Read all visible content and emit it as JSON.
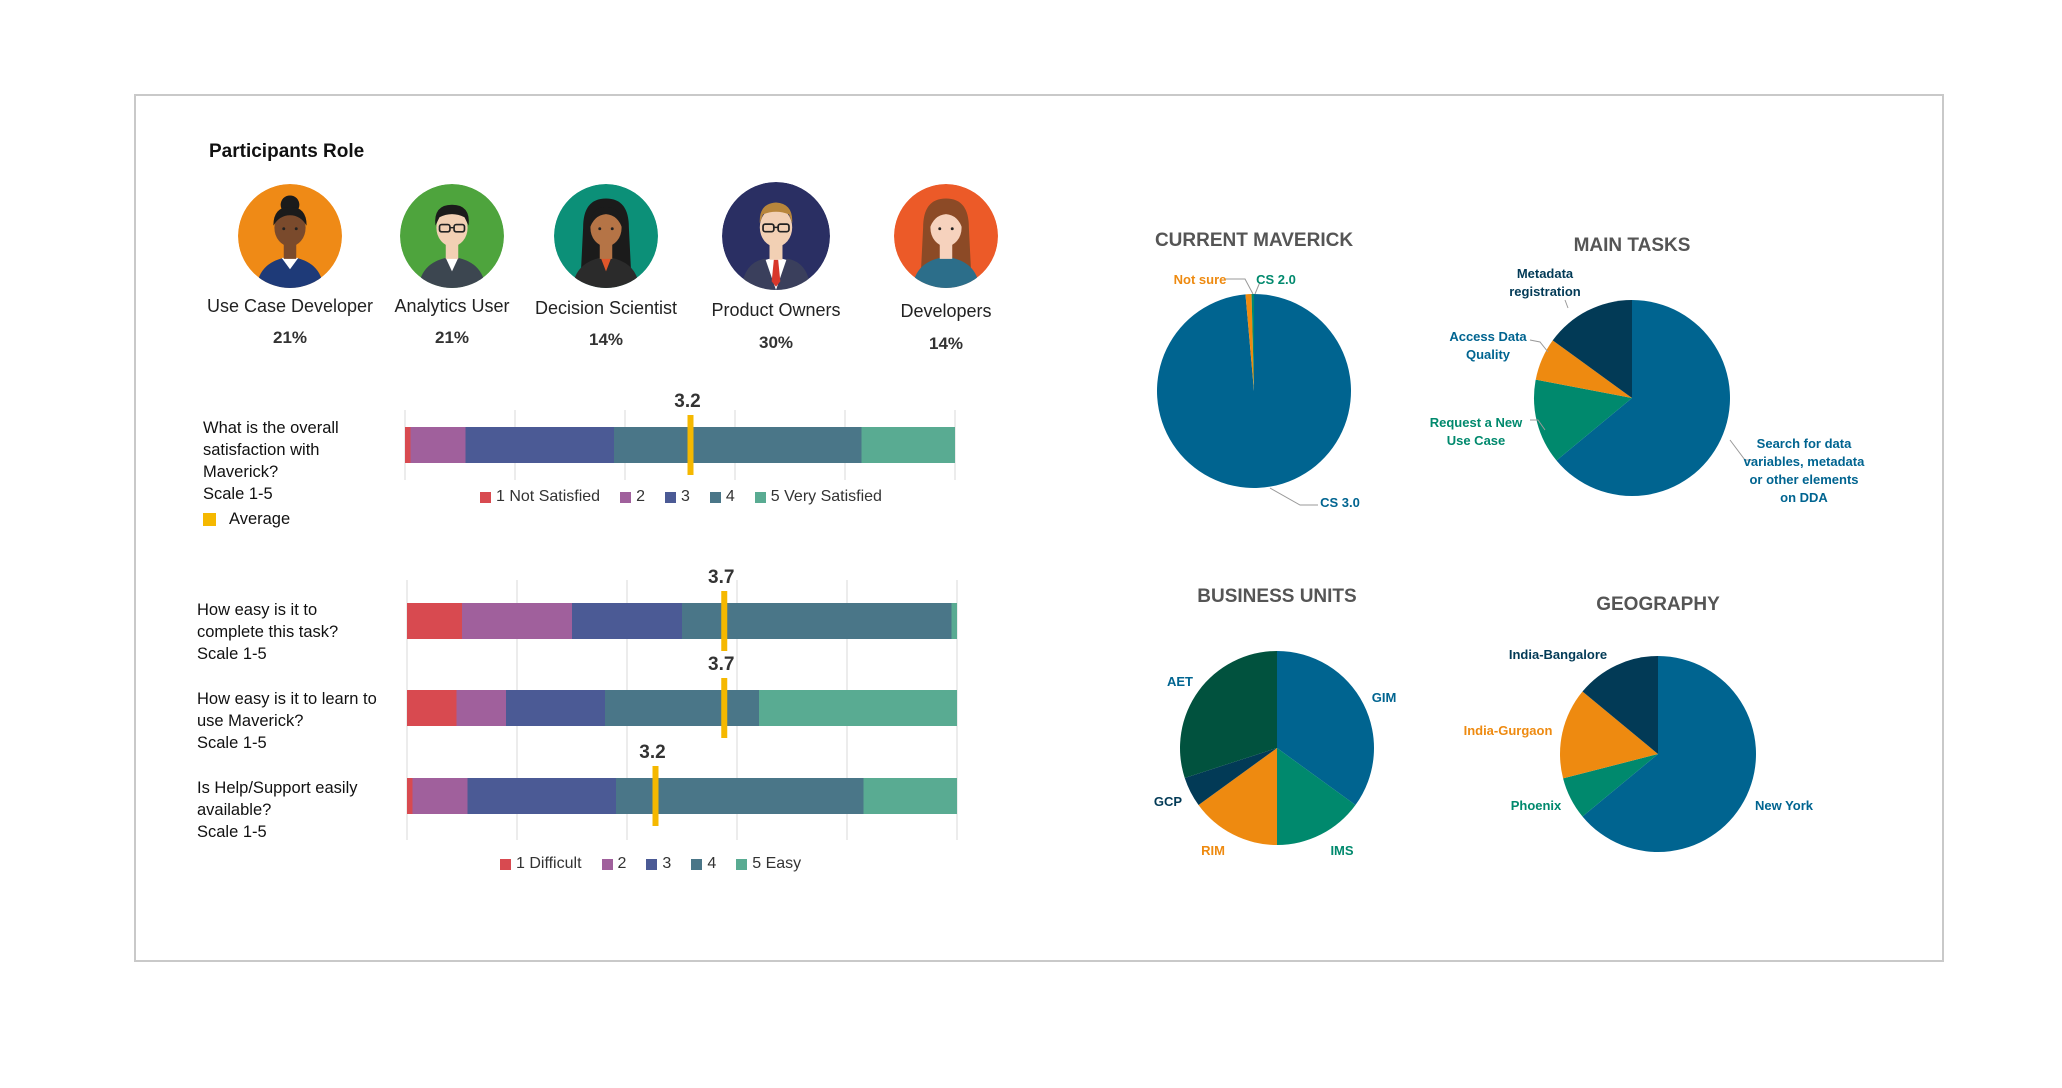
{
  "participants": {
    "title": "Participants Role",
    "roles": [
      {
        "label": "Use Case Developer",
        "pct": "21%",
        "bg": "#ef8a16",
        "skin": "#7a4a2c",
        "hair": "#1b1b1b",
        "shirt": "#1e3a78",
        "icon": "woman-curly-hair-icon"
      },
      {
        "label": "Analytics User",
        "pct": "21%",
        "bg": "#4ea43d",
        "skin": "#f2d0b4",
        "hair": "#1b1b1b",
        "shirt": "#3c4650",
        "icon": "man-glasses-icon"
      },
      {
        "label": "Decision Scientist",
        "pct": "14%",
        "bg": "#0c9078",
        "skin": "#b57446",
        "hair": "#1b1b1b",
        "shirt": "#2b2b2b",
        "icon": "woman-long-hair-icon"
      },
      {
        "label": "Product Owners",
        "pct": "30%",
        "bg": "#2a2f63",
        "skin": "#f2d0b4",
        "hair": "#b8863b",
        "shirt": "#ffffff",
        "icon": "man-tie-icon"
      },
      {
        "label": "Developers",
        "pct": "14%",
        "bg": "#ec5a28",
        "skin": "#f6d2bd",
        "hair": "#8c4a26",
        "shirt": "#2c6e8a",
        "icon": "woman-brown-hair-icon"
      }
    ]
  },
  "colors": {
    "c1": "#d84a50",
    "c2": "#a0609c",
    "c3": "#4b5a95",
    "c4": "#4a7688",
    "c5": "#59ab92",
    "avg": "#f5b800",
    "pie_blue": "#006490",
    "pie_orange": "#ee8a10",
    "pie_green": "#00896d",
    "pie_dark": "#023a56",
    "pie_darkgreen": "#01523e"
  },
  "satisfaction": {
    "question": [
      "What is the overall",
      "satisfaction with",
      "Maverick?",
      "Scale 1-5"
    ],
    "average_legend": "Average",
    "legend": [
      "1 Not Satisfied",
      "2",
      "3",
      "4",
      "5 Very Satisfied"
    ]
  },
  "ease": {
    "questions": [
      [
        "How easy is it to",
        "complete this task?",
        "Scale 1-5"
      ],
      [
        "How easy is it to learn to",
        "use Maverick?",
        "Scale 1-5"
      ],
      [
        "Is Help/Support easily",
        "available?",
        "Scale 1-5"
      ]
    ],
    "legend": [
      "1 Difficult",
      "2",
      "3",
      "4",
      "5 Easy"
    ]
  },
  "chart_data": [
    {
      "type": "bar",
      "subtype": "stacked-100-horizontal",
      "categories": [
        "What is the overall satisfaction with Maverick?"
      ],
      "series": [
        {
          "name": "1 Not Satisfied",
          "values": [
            1
          ]
        },
        {
          "name": "2",
          "values": [
            10
          ]
        },
        {
          "name": "3",
          "values": [
            27
          ]
        },
        {
          "name": "4",
          "values": [
            45
          ]
        },
        {
          "name": "5 Very Satisfied",
          "values": [
            17
          ]
        }
      ],
      "averages": [
        3.2
      ],
      "averages_label": [
        "3.2"
      ],
      "avg_scale": [
        1,
        5
      ]
    },
    {
      "type": "bar",
      "subtype": "stacked-100-horizontal",
      "categories": [
        "How easy is it to complete this task?",
        "How easy is it to learn to use Maverick?",
        "Is Help/Support easily available?"
      ],
      "series": [
        {
          "name": "1 Difficult",
          "values": [
            10,
            9,
            1
          ]
        },
        {
          "name": "2",
          "values": [
            20,
            9,
            10
          ]
        },
        {
          "name": "3",
          "values": [
            20,
            18,
            27
          ]
        },
        {
          "name": "4",
          "values": [
            49,
            28,
            45
          ]
        },
        {
          "name": "5 Easy",
          "values": [
            1,
            36,
            17
          ]
        }
      ],
      "averages": [
        3.7,
        3.7,
        3.2
      ],
      "averages_label": [
        "3.7",
        "3.7",
        "3.2"
      ],
      "avg_scale": [
        1,
        5
      ]
    },
    {
      "type": "pie",
      "title": "CURRENT MAVERICK",
      "slices": [
        {
          "label": "CS 3.0",
          "value": 98.6,
          "color": "#006490",
          "label_color": "#006490"
        },
        {
          "label": "Not sure",
          "value": 1.0,
          "color": "#ee8a10",
          "label_color": "#ee8a10"
        },
        {
          "label": "CS 2.0",
          "value": 0.4,
          "color": "#00896d",
          "label_color": "#00896d"
        }
      ]
    },
    {
      "type": "pie",
      "title": "MAIN TASKS",
      "slices": [
        {
          "label": "Search for data variables, metadata or other elements on DDA",
          "lines": [
            "Search for data",
            "variables, metadata",
            "or other elements",
            "on DDA"
          ],
          "value": 64,
          "color": "#006490",
          "label_color": "#006490"
        },
        {
          "label": "Request a New Use Case",
          "lines": [
            "Request a New",
            "Use Case"
          ],
          "value": 14,
          "color": "#00896d",
          "label_color": "#00896d"
        },
        {
          "label": "Access Data Quality",
          "lines": [
            "Access Data",
            "Quality"
          ],
          "value": 7,
          "color": "#ee8a10",
          "label_color": "#006490"
        },
        {
          "label": "Metadata registration",
          "lines": [
            "Metadata",
            "registration"
          ],
          "value": 15,
          "color": "#023a56",
          "label_color": "#023a56"
        }
      ]
    },
    {
      "type": "pie",
      "title": "BUSINESS UNITS",
      "slices": [
        {
          "label": "GIM",
          "value": 35,
          "color": "#006490",
          "label_color": "#006490"
        },
        {
          "label": "IMS",
          "value": 15,
          "color": "#00896d",
          "label_color": "#00896d"
        },
        {
          "label": "RIM",
          "value": 15,
          "color": "#ee8a10",
          "label_color": "#ee8a10"
        },
        {
          "label": "GCP",
          "value": 5,
          "color": "#023a56",
          "label_color": "#023a56"
        },
        {
          "label": "AET",
          "value": 30,
          "color": "#01523e",
          "label_color": "#006490"
        }
      ]
    },
    {
      "type": "pie",
      "title": "GEOGRAPHY",
      "slices": [
        {
          "label": "New York",
          "value": 64,
          "color": "#006490",
          "label_color": "#006490"
        },
        {
          "label": "Phoenix",
          "value": 7,
          "color": "#00896d",
          "label_color": "#00896d"
        },
        {
          "label": "India-Gurgaon",
          "value": 15,
          "color": "#ee8a10",
          "label_color": "#ee8a10"
        },
        {
          "label": "India-Bangalore",
          "value": 14,
          "color": "#023a56",
          "label_color": "#023a56"
        }
      ]
    }
  ]
}
